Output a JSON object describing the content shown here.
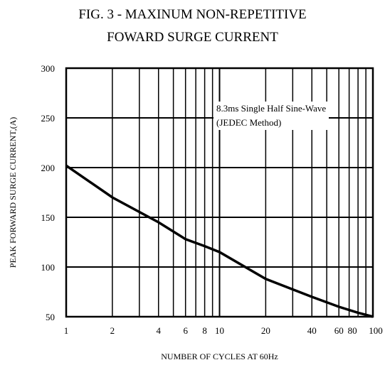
{
  "title_line1": "FIG. 3 - MAXINUM NON-REPETITIVE",
  "title_line2": "FOWARD SURGE CURRENT",
  "annotation_line1": "8.3ms Single Half Sine-Wave",
  "annotation_line2": "(JEDEC Method)",
  "chart_data": {
    "type": "line",
    "title": "FIG. 3 - MAXINUM NON-REPETITIVE FOWARD SURGE CURRENT",
    "xlabel": "NUMBER OF CYCLES AT 60Hz",
    "ylabel": "PEAK FORWARD SURGE CURRENT,(A)",
    "x_scale": "log",
    "xlim": [
      1,
      100
    ],
    "ylim": [
      50,
      300
    ],
    "x_ticks": [
      1,
      2,
      4,
      6,
      8,
      10,
      20,
      40,
      60,
      80,
      100
    ],
    "x_tick_labels": [
      "1",
      "2",
      "4",
      "6",
      "8",
      "10",
      "20",
      "40",
      "60",
      "80",
      "100"
    ],
    "y_ticks": [
      50,
      100,
      150,
      200,
      250,
      300
    ],
    "y_tick_labels": [
      "50",
      "100",
      "150",
      "200",
      "250",
      "300"
    ],
    "grid": true,
    "series": [
      {
        "x": [
          1,
          2,
          4,
          6,
          8,
          10,
          20,
          40,
          60,
          80,
          100
        ],
        "y": [
          202,
          170,
          145,
          128,
          121,
          115,
          88,
          70,
          60,
          54,
          50
        ]
      }
    ],
    "color": "#000000"
  }
}
